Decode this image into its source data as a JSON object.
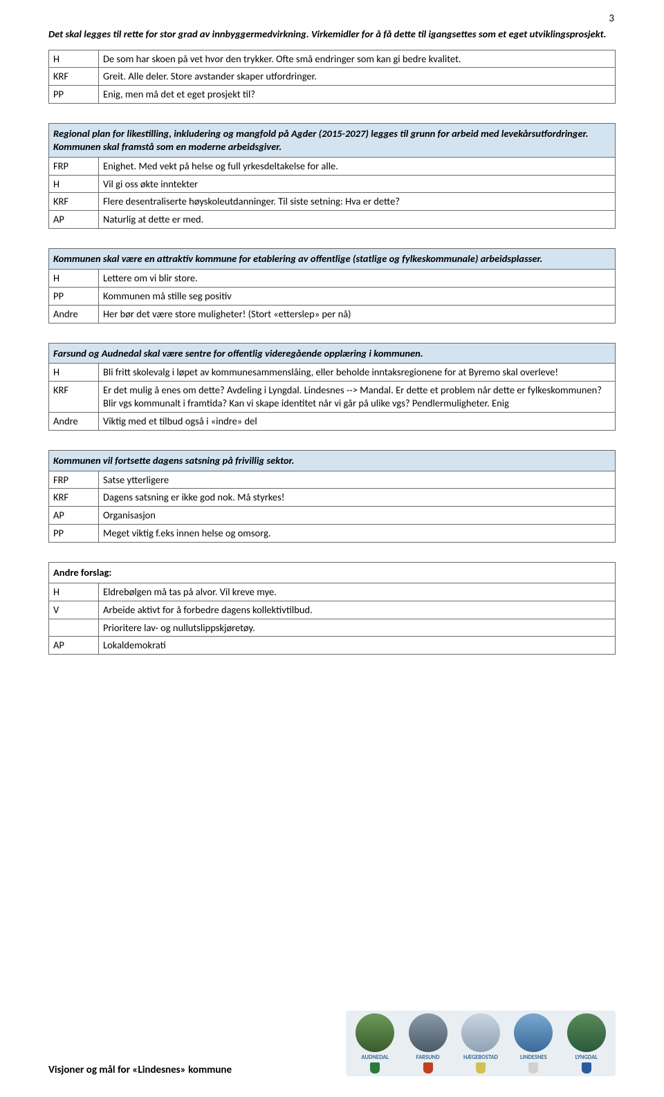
{
  "page_number": "3",
  "section1": {
    "intro": "Det skal legges til rette for stor grad av innbyggermedvirkning. Virkemidler for å få dette til igangsettes som et eget utviklingsprosjekt.",
    "rows": [
      {
        "party": "H",
        "text": "De som har skoen på vet hvor den trykker. Ofte små endringer som kan gi bedre kvalitet."
      },
      {
        "party": "KRF",
        "text": "Greit. Alle deler. Store avstander skaper utfordringer."
      },
      {
        "party": "PP",
        "text": "Enig, men må det et eget prosjekt til?"
      }
    ]
  },
  "section2": {
    "header": "Regional plan for likestilling, inkludering og mangfold på Agder (2015-2027) legges til grunn for arbeid med levekårsutfordringer. Kommunen skal framstå som en moderne arbeidsgiver.",
    "rows": [
      {
        "party": "FRP",
        "text": "Enighet. Med vekt på helse og full yrkesdeltakelse for alle."
      },
      {
        "party": "H",
        "text": "Vil gi oss økte inntekter"
      },
      {
        "party": "KRF",
        "text": "Flere desentraliserte høyskoleutdanninger. Til siste setning: Hva er dette?"
      },
      {
        "party": "AP",
        "text": "Naturlig at dette er med."
      }
    ]
  },
  "section3": {
    "header": "Kommunen skal være en attraktiv kommune for etablering av offentlige (statlige og fylkeskommunale) arbeidsplasser.",
    "rows": [
      {
        "party": "H",
        "text": "Lettere om vi blir store."
      },
      {
        "party": "PP",
        "text": "Kommunen må stille seg positiv"
      },
      {
        "party": "Andre",
        "text": "Her bør det være store muligheter! (Stort «etterslep» per nå)"
      }
    ]
  },
  "section4": {
    "header": "Farsund og Audnedal skal være sentre for offentlig videregående opplæring i kommunen.",
    "rows": [
      {
        "party": "H",
        "text": "Bli fritt skolevalg i løpet av kommunesammenslåing, eller beholde inntaksregionene for at Byremo skal overleve!"
      },
      {
        "party": "KRF",
        "text": "Er det mulig å enes om dette? Avdeling i Lyngdal. Lindesnes --> Mandal. Er dette et problem når dette er fylkeskommunen? Blir vgs kommunalt i framtida? Kan vi skape identitet når vi går på ulike vgs? Pendlermuligheter. Enig"
      },
      {
        "party": "Andre",
        "text": "Viktig med et tilbud også i «indre» del"
      }
    ]
  },
  "section5": {
    "header": "Kommunen vil fortsette dagens satsning på frivillig sektor.",
    "rows": [
      {
        "party": "FRP",
        "text": "Satse ytterligere"
      },
      {
        "party": "KRF",
        "text": "Dagens satsning er ikke god nok. Må styrkes!"
      },
      {
        "party": "AP",
        "text": "Organisasjon"
      },
      {
        "party": "PP",
        "text": "Meget viktig f.eks innen helse og omsorg."
      }
    ]
  },
  "section6": {
    "header": "Andre forslag:",
    "rows": [
      {
        "party": "H",
        "text": "Eldrebølgen må tas på alvor. Vil kreve mye."
      },
      {
        "party": "V",
        "text": "Arbeide aktivt for å forbedre dagens kollektivtilbud."
      },
      {
        "party": "",
        "text": "Prioritere lav- og nullutslippskjøretøy."
      },
      {
        "party": "AP",
        "text": "Lokaldemokrati"
      }
    ]
  },
  "footer_title": "Visjoner og mål for «Lindesnes» kommune",
  "badges": [
    {
      "name": "AUDNEDAL",
      "bg": "linear-gradient(#6b9b5a,#3a5a2a)",
      "shield": "#2a7a3a"
    },
    {
      "name": "FARSUND",
      "bg": "linear-gradient(#8a9aa8,#4a5a68)",
      "shield": "#c04020"
    },
    {
      "name": "HÆGEBOSTAD",
      "bg": "linear-gradient(#c9d4df,#8fa2b5)",
      "shield": "#d4c050"
    },
    {
      "name": "LINDESNES",
      "bg": "linear-gradient(#7aa8d0,#3a6a9a)",
      "shield": "#d0d0d0"
    },
    {
      "name": "LYNGDAL",
      "bg": "linear-gradient(#5a8a5a,#2a5a3a)",
      "shield": "#2a5aa0"
    }
  ]
}
